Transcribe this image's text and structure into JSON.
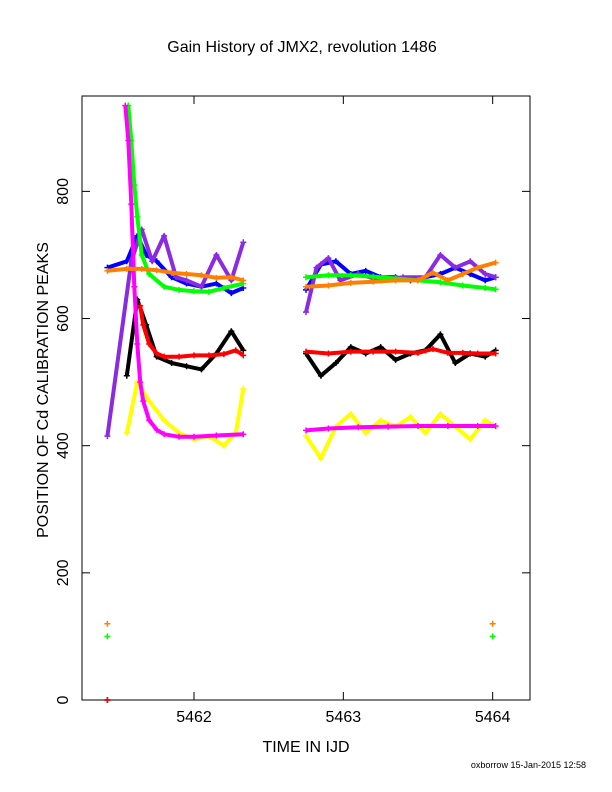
{
  "chart_data": {
    "type": "scatter",
    "title": "Gain History of JMX2, revolution 1486",
    "xlabel": "TIME IN IJD",
    "ylabel": "POSITION OF Cd CALIBRATION PEAKS",
    "xlim": [
      5461.25,
      5464.25
    ],
    "ylim": [
      0,
      950
    ],
    "x_ticks": [
      5462,
      5463,
      5464
    ],
    "y_ticks": [
      0,
      200,
      400,
      600,
      800
    ],
    "x_tick_labels": [
      "5462",
      "5463",
      "5464"
    ],
    "y_tick_labels": [
      "0",
      "200",
      "400",
      "600",
      "800"
    ],
    "grid": false,
    "footer": "oxborrow 15-Jan-2015 12:58",
    "series": [
      {
        "color": "#0000ff",
        "x": [
          5461.42,
          5461.55,
          5461.62,
          5461.68,
          5461.75,
          5461.85,
          5461.95,
          5462.05,
          5462.15,
          5462.25,
          5462.33,
          5462.75,
          5462.85,
          5462.95,
          5463.05,
          5463.15,
          5463.25,
          5463.35,
          5463.45,
          5463.55,
          5463.65,
          5463.75,
          5463.85,
          5463.95,
          5464.02
        ],
        "y": [
          680,
          690,
          730,
          700,
          690,
          665,
          655,
          650,
          655,
          640,
          648,
          645,
          685,
          690,
          670,
          675,
          665,
          665,
          660,
          665,
          670,
          680,
          670,
          660,
          665
        ]
      },
      {
        "color": "#8a2be2",
        "x": [
          5461.42,
          5461.58,
          5461.65,
          5461.72,
          5461.8,
          5461.88,
          5461.95,
          5462.05,
          5462.15,
          5462.25,
          5462.33,
          5462.75,
          5462.82,
          5462.9,
          5462.98,
          5463.1,
          5463.25,
          5463.4,
          5463.55,
          5463.65,
          5463.75,
          5463.85,
          5463.95,
          5464.02
        ],
        "y": [
          415,
          690,
          740,
          690,
          730,
          665,
          660,
          650,
          700,
          660,
          720,
          610,
          680,
          695,
          660,
          670,
          660,
          665,
          665,
          700,
          680,
          690,
          670,
          665
        ]
      },
      {
        "color": "#000000",
        "x": [
          5461.42,
          5461.55,
          5461.62,
          5461.68,
          5461.75,
          5461.85,
          5461.95,
          5462.05,
          5462.15,
          5462.25,
          5462.33,
          5462.75,
          5462.85,
          5462.95,
          5463.05,
          5463.15,
          5463.25,
          5463.35,
          5463.45,
          5463.55,
          5463.65,
          5463.75,
          5463.85,
          5463.95,
          5464.02
        ],
        "y": [
          0,
          510,
          630,
          590,
          540,
          530,
          525,
          520,
          545,
          580,
          550,
          545,
          510,
          530,
          555,
          545,
          555,
          535,
          545,
          550,
          575,
          530,
          545,
          540,
          550
        ]
      },
      {
        "color": "#ffff00",
        "x": [
          5461.55,
          5461.62,
          5461.7,
          5461.8,
          5461.9,
          5462.0,
          5462.1,
          5462.2,
          5462.28,
          5462.33,
          5462.75,
          5462.85,
          5462.95,
          5463.05,
          5463.15,
          5463.25,
          5463.35,
          5463.45,
          5463.55,
          5463.65,
          5463.75,
          5463.85,
          5463.95,
          5464.02
        ],
        "y": [
          420,
          500,
          470,
          440,
          420,
          410,
          415,
          400,
          420,
          490,
          415,
          380,
          430,
          450,
          420,
          440,
          430,
          445,
          420,
          450,
          430,
          410,
          440,
          430
        ]
      },
      {
        "color": "#00ff00",
        "x": [
          5461.42,
          5461.56,
          5461.58,
          5461.6,
          5461.62,
          5461.65,
          5461.7,
          5461.8,
          5461.9,
          5462.0,
          5462.1,
          5462.2,
          5462.33,
          5462.75,
          5462.9,
          5463.05,
          5463.2,
          5463.35,
          5463.5,
          5463.65,
          5463.8,
          5463.95,
          5464.02
        ],
        "y": [
          100,
          935,
          880,
          810,
          760,
          700,
          670,
          650,
          645,
          643,
          642,
          648,
          655,
          665,
          668,
          668,
          666,
          663,
          660,
          657,
          652,
          648,
          646
        ]
      },
      {
        "color": "#ff00ff",
        "x": [
          5461.54,
          5461.56,
          5461.58,
          5461.6,
          5461.62,
          5461.64,
          5461.66,
          5461.7,
          5461.75,
          5461.8,
          5461.9,
          5462.0,
          5462.15,
          5462.33,
          5462.75,
          5462.9,
          5463.1,
          5463.3,
          5463.5,
          5463.7,
          5463.9,
          5464.02
        ],
        "y": [
          935,
          880,
          780,
          650,
          560,
          500,
          470,
          440,
          425,
          418,
          414,
          414,
          416,
          418,
          424,
          427,
          429,
          430,
          431,
          431,
          431,
          431
        ]
      },
      {
        "color": "#ff0000",
        "x": [
          5461.42,
          5461.64,
          5461.66,
          5461.7,
          5461.75,
          5461.8,
          5461.9,
          5462.0,
          5462.1,
          5462.2,
          5462.28,
          5462.33,
          5462.75,
          5462.9,
          5463.05,
          5463.2,
          5463.35,
          5463.5,
          5463.6,
          5463.7,
          5463.8,
          5463.9,
          5464.02
        ],
        "y": [
          0,
          620,
          590,
          560,
          545,
          540,
          540,
          542,
          542,
          544,
          550,
          542,
          548,
          545,
          548,
          548,
          548,
          546,
          552,
          546,
          546,
          545,
          545
        ]
      },
      {
        "color": "#ff8000",
        "x": [
          5461.42,
          5461.42,
          5461.55,
          5461.65,
          5461.75,
          5461.85,
          5461.95,
          5462.05,
          5462.15,
          5462.25,
          5462.33,
          5462.75,
          5462.9,
          5463.05,
          5463.2,
          5463.35,
          5463.5,
          5463.6,
          5463.7,
          5463.8,
          5463.9,
          5464.02
        ],
        "y": [
          120,
          675,
          678,
          678,
          676,
          672,
          670,
          668,
          664,
          665,
          660,
          650,
          652,
          656,
          658,
          660,
          660,
          672,
          660,
          670,
          680,
          688
        ]
      }
    ],
    "isolated_points": [
      {
        "color": "#ff8000",
        "x": 5464.0,
        "y": 120
      },
      {
        "color": "#00ff00",
        "x": 5464.0,
        "y": 100
      }
    ]
  }
}
